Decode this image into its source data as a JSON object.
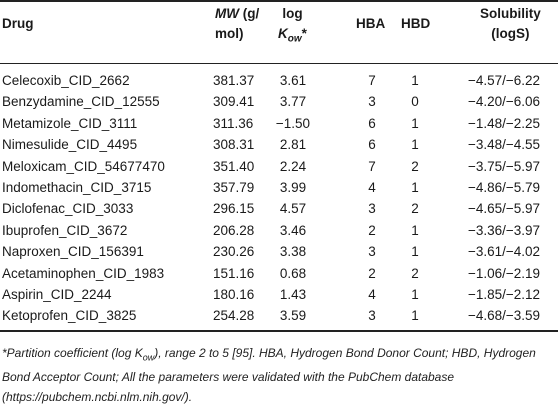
{
  "table": {
    "headers": {
      "drug": "Drug",
      "mw_italic": "MW",
      "mw_rest_1": "(g/",
      "mw_rest_2": "mol)",
      "log_1": "log",
      "log_k": "K",
      "log_sub": "ow",
      "log_star": "*",
      "hba": "HBA",
      "hbd": "HBD",
      "sol_1": "Solubility",
      "sol_2": "(logS)"
    },
    "rows": [
      {
        "drug": "Celecoxib_CID_2662",
        "mw": "381.37",
        "logkow": "3.61",
        "hba": "7",
        "hbd": "1",
        "sol": "−4.57/−6.22"
      },
      {
        "drug": "Benzydamine_CID_12555",
        "mw": "309.41",
        "logkow": "3.77",
        "hba": "3",
        "hbd": "0",
        "sol": "−4.20/−6.06"
      },
      {
        "drug": "Metamizole_CID_3111",
        "mw": "311.36",
        "logkow": "−1.50",
        "hba": "6",
        "hbd": "1",
        "sol": "−1.48/−2.25"
      },
      {
        "drug": "Nimesulide_CID_4495",
        "mw": "308.31",
        "logkow": "2.81",
        "hba": "6",
        "hbd": "1",
        "sol": "−3.48/−4.55"
      },
      {
        "drug": "Meloxicam_CID_54677470",
        "mw": "351.40",
        "logkow": "2.24",
        "hba": "7",
        "hbd": "2",
        "sol": "−3.75/−5.97"
      },
      {
        "drug": "Indomethacin_CID_3715",
        "mw": "357.79",
        "logkow": "3.99",
        "hba": "4",
        "hbd": "1",
        "sol": "−4.86/−5.79"
      },
      {
        "drug": "Diclofenac_CID_3033",
        "mw": "296.15",
        "logkow": "4.57",
        "hba": "3",
        "hbd": "2",
        "sol": "−4.65/−5.97"
      },
      {
        "drug": "Ibuprofen_CID_3672",
        "mw": "206.28",
        "logkow": "3.46",
        "hba": "2",
        "hbd": "1",
        "sol": "−3.36/−3.97"
      },
      {
        "drug": "Naproxen_CID_156391",
        "mw": "230.26",
        "logkow": "3.38",
        "hba": "3",
        "hbd": "1",
        "sol": "−3.61/−4.02"
      },
      {
        "drug": "Acetaminophen_CID_1983",
        "mw": "151.16",
        "logkow": "0.68",
        "hba": "2",
        "hbd": "2",
        "sol": "−1.06/−2.19"
      },
      {
        "drug": "Aspirin_CID_2244",
        "mw": "180.16",
        "logkow": "1.43",
        "hba": "4",
        "hbd": "1",
        "sol": "−1.85/−2.12"
      },
      {
        "drug": "Ketoprofen_CID_3825",
        "mw": "254.28",
        "logkow": "3.59",
        "hba": "3",
        "hbd": "1",
        "sol": "−4.68/−3.59"
      }
    ]
  },
  "footnote": {
    "part1": "*Partition coefficient (log K",
    "sub": "ow",
    "part2": "), range 2 to 5 [95]. HBA, Hydrogen Bond Donor Count; HBD, Hydrogen Bond Acceptor Count; All the parameters were validated with the PubChem database (https://pubchem.ncbi.nlm.nih.gov/)."
  }
}
